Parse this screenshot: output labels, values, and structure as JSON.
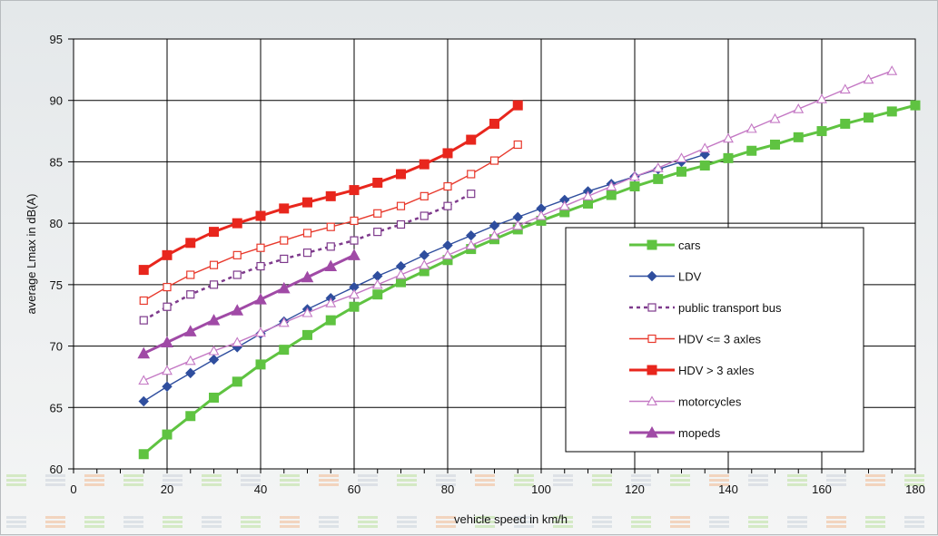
{
  "chart_data": {
    "type": "line",
    "xlabel": "vehicle speed in km/h",
    "ylabel": "average Lmax in dB(A)",
    "xlim": [
      0,
      180
    ],
    "ylim": [
      60,
      95
    ],
    "xticks": [
      0,
      20,
      40,
      60,
      80,
      100,
      120,
      140,
      160,
      180
    ],
    "yticks": [
      60,
      65,
      70,
      75,
      80,
      85,
      90,
      95
    ],
    "grid": true,
    "legend_position": "lower-right",
    "series": [
      {
        "name": "cars",
        "color": "#5fc341",
        "marker": "square-filled",
        "line": "solid-thick",
        "x": [
          15,
          20,
          25,
          30,
          35,
          40,
          45,
          50,
          55,
          60,
          65,
          70,
          75,
          80,
          85,
          90,
          95,
          100,
          105,
          110,
          115,
          120,
          125,
          130,
          135,
          140,
          145,
          150,
          155,
          160,
          165,
          170,
          175,
          180
        ],
        "y": [
          61.2,
          62.8,
          64.3,
          65.8,
          67.1,
          68.5,
          69.7,
          70.9,
          72.1,
          73.2,
          74.2,
          75.2,
          76.1,
          77.0,
          77.9,
          78.7,
          79.5,
          80.2,
          80.9,
          81.6,
          82.3,
          83.0,
          83.6,
          84.2,
          84.7,
          85.3,
          85.9,
          86.4,
          87.0,
          87.5,
          88.1,
          88.6,
          89.1,
          89.6
        ]
      },
      {
        "name": "LDV",
        "color": "#2f4e9e",
        "marker": "diamond-filled",
        "line": "solid",
        "x": [
          15,
          20,
          25,
          30,
          35,
          40,
          45,
          50,
          55,
          60,
          65,
          70,
          75,
          80,
          85,
          90,
          95,
          100,
          105,
          110,
          115,
          120,
          125,
          130,
          135
        ],
        "y": [
          65.5,
          66.7,
          67.8,
          68.9,
          69.9,
          71.0,
          72.0,
          73.0,
          73.9,
          74.8,
          75.7,
          76.5,
          77.4,
          78.2,
          79.0,
          79.8,
          80.5,
          81.2,
          81.9,
          82.6,
          83.2,
          83.8,
          84.4,
          85.0,
          85.6
        ]
      },
      {
        "name": "public transport bus",
        "color": "#7e3a8c",
        "marker": "square-open",
        "line": "dashed",
        "x": [
          15,
          20,
          25,
          30,
          35,
          40,
          45,
          50,
          55,
          60,
          65,
          70,
          75,
          80,
          85
        ],
        "y": [
          72.1,
          73.2,
          74.2,
          75.0,
          75.8,
          76.5,
          77.1,
          77.6,
          78.1,
          78.6,
          79.3,
          79.9,
          80.6,
          81.4,
          82.4
        ]
      },
      {
        "name": "HDV <= 3 axles",
        "color": "#e8392c",
        "marker": "square-open",
        "line": "solid",
        "x": [
          15,
          20,
          25,
          30,
          35,
          40,
          45,
          50,
          55,
          60,
          65,
          70,
          75,
          80,
          85,
          90,
          95
        ],
        "y": [
          73.7,
          74.8,
          75.8,
          76.6,
          77.4,
          78.0,
          78.6,
          79.2,
          79.7,
          80.2,
          80.8,
          81.4,
          82.2,
          83.0,
          84.0,
          85.1,
          86.4
        ]
      },
      {
        "name": "HDV > 3 axles",
        "color": "#e8261d",
        "marker": "square-filled",
        "line": "solid-thick",
        "x": [
          15,
          20,
          25,
          30,
          35,
          40,
          45,
          50,
          55,
          60,
          65,
          70,
          75,
          80,
          85,
          90,
          95
        ],
        "y": [
          76.2,
          77.4,
          78.4,
          79.3,
          80.0,
          80.6,
          81.2,
          81.7,
          82.2,
          82.7,
          83.3,
          84.0,
          84.8,
          85.7,
          86.8,
          88.1,
          89.6
        ]
      },
      {
        "name": "motorcycles",
        "color": "#c478c4",
        "marker": "triangle-open",
        "line": "solid",
        "x": [
          15,
          20,
          25,
          30,
          35,
          40,
          45,
          50,
          55,
          60,
          65,
          70,
          75,
          80,
          85,
          90,
          95,
          100,
          105,
          110,
          115,
          120,
          125,
          130,
          135,
          140,
          145,
          150,
          155,
          160,
          165,
          170,
          175
        ],
        "y": [
          67.2,
          68.0,
          68.8,
          69.6,
          70.3,
          71.1,
          71.9,
          72.7,
          73.5,
          74.2,
          75.0,
          75.8,
          76.6,
          77.4,
          78.2,
          79.0,
          79.8,
          80.6,
          81.4,
          82.2,
          83.0,
          83.8,
          84.5,
          85.3,
          86.1,
          86.9,
          87.7,
          88.5,
          89.3,
          90.1,
          90.9,
          91.7,
          92.4
        ]
      },
      {
        "name": "mopeds",
        "color": "#a04aa6",
        "marker": "triangle-filled",
        "line": "solid-thick",
        "x": [
          15,
          20,
          25,
          30,
          35,
          40,
          45,
          50,
          55,
          60
        ],
        "y": [
          69.4,
          70.3,
          71.2,
          72.1,
          72.9,
          73.8,
          74.7,
          75.6,
          76.5,
          77.4
        ]
      }
    ]
  }
}
